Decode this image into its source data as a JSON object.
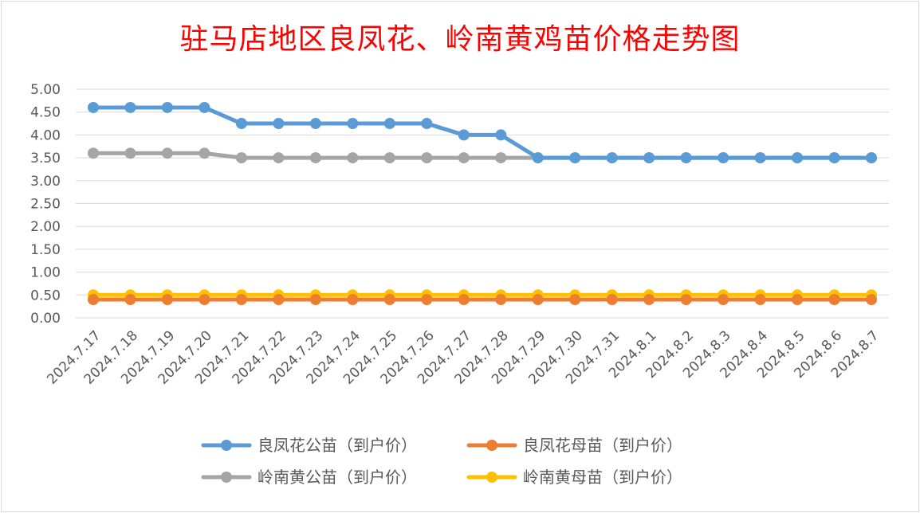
{
  "chart_data": {
    "type": "line",
    "title": "驻马店地区良凤花、岭南黄鸡苗价格走势图",
    "xlabel": "",
    "ylabel": "",
    "categories": [
      "2024.7.17",
      "2024.7.18",
      "2024.7.19",
      "2024.7.20",
      "2024.7.21",
      "2024.7.22",
      "2024.7.23",
      "2024.7.24",
      "2024.7.25",
      "2024.7.26",
      "2024.7.27",
      "2024.7.28",
      "2024.7.29",
      "2024.7.30",
      "2024.7.31",
      "2024.8.1",
      "2024.8.2",
      "2024.8.3",
      "2024.8.4",
      "2024.8.5",
      "2024.8.6",
      "2024.8.7"
    ],
    "ylim": [
      0,
      5
    ],
    "yticks": [
      "0.00",
      "0.50",
      "1.00",
      "1.50",
      "2.00",
      "2.50",
      "3.00",
      "3.50",
      "4.00",
      "4.50",
      "5.00"
    ],
    "grid": true,
    "legend_position": "bottom",
    "series": [
      {
        "name": "良凤花公苗（到户价）",
        "color": "#5b9bd5",
        "values": [
          4.6,
          4.6,
          4.6,
          4.6,
          4.25,
          4.25,
          4.25,
          4.25,
          4.25,
          4.25,
          4.0,
          4.0,
          3.5,
          3.5,
          3.5,
          3.5,
          3.5,
          3.5,
          3.5,
          3.5,
          3.5,
          3.5
        ]
      },
      {
        "name": "良凤花母苗（到户价）",
        "color": "#ed7d31",
        "values": [
          0.4,
          0.4,
          0.4,
          0.4,
          0.4,
          0.4,
          0.4,
          0.4,
          0.4,
          0.4,
          0.4,
          0.4,
          0.4,
          0.4,
          0.4,
          0.4,
          0.4,
          0.4,
          0.4,
          0.4,
          0.4,
          0.4
        ]
      },
      {
        "name": "岭南黄公苗（到户价）",
        "color": "#a5a5a5",
        "values": [
          3.6,
          3.6,
          3.6,
          3.6,
          3.5,
          3.5,
          3.5,
          3.5,
          3.5,
          3.5,
          3.5,
          3.5,
          3.5,
          3.5,
          3.5,
          3.5,
          3.5,
          3.5,
          3.5,
          3.5,
          3.5,
          3.5
        ]
      },
      {
        "name": "岭南黄母苗（到户价）",
        "color": "#ffc000",
        "values": [
          0.5,
          0.5,
          0.5,
          0.5,
          0.5,
          0.5,
          0.5,
          0.5,
          0.5,
          0.5,
          0.5,
          0.5,
          0.5,
          0.5,
          0.5,
          0.5,
          0.5,
          0.5,
          0.5,
          0.5,
          0.5,
          0.5
        ]
      }
    ],
    "series_draw_order": [
      3,
      1,
      2,
      0
    ]
  }
}
